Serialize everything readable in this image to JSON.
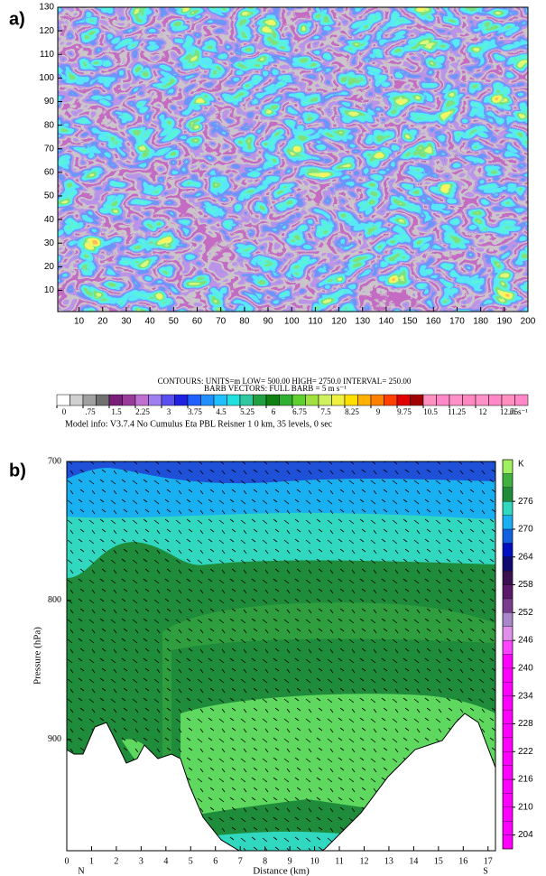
{
  "chart_data": [
    {
      "type": "heatmap",
      "panel_label": "a)",
      "xlim": [
        1,
        200
      ],
      "xticks": [
        10,
        20,
        30,
        40,
        50,
        60,
        70,
        80,
        90,
        100,
        110,
        120,
        130,
        140,
        150,
        160,
        170,
        180,
        190,
        200
      ],
      "ylim": [
        1,
        130
      ],
      "yticks": [
        10,
        20,
        30,
        40,
        50,
        60,
        70,
        80,
        90,
        100,
        110,
        120,
        130
      ],
      "contours_text": "CONTOURS:  UNITS=m  LOW=  500.00      HIGH=  2750.0      INTERVAL=   250.00",
      "barb_text": "BARB VECTORS:  FULL BARB = 5 m s⁻¹",
      "model_info": "Model info: V3.7.4 No Cumulus Eta PBL    Reisner 1      0 km,  35 levels,     0 sec",
      "colorbar": {
        "lim": [
          0,
          13.5
        ],
        "units": "m s⁻¹",
        "ticks": [
          0,
          {
            "value": 0.75,
            "label": ".75"
          },
          1.5,
          2.25,
          3,
          3.75,
          4.5,
          5.25,
          6,
          6.75,
          7.5,
          8.25,
          9,
          9.75,
          10.5,
          11.25,
          12,
          12.75
        ],
        "colors": [
          "#ffffff",
          "#d0d0d0",
          "#a0a0a0",
          "#707070",
          "#7a1e7a",
          "#9a3a9a",
          "#c070d0",
          "#a080f0",
          "#5a50f0",
          "#2020e0",
          "#2060ff",
          "#2090ff",
          "#20c0ff",
          "#20e0e0",
          "#30c8a0",
          "#20a040",
          "#108010",
          "#30b030",
          "#60d030",
          "#a0e040",
          "#d0f060",
          "#f0f040",
          "#ffe000",
          "#ffb000",
          "#ff8000",
          "#ff4000",
          "#e00000",
          "#a00000",
          "#ff90c0",
          "#ff88c8",
          "#ff90c8",
          "#ff88c0",
          "#ff90c8",
          "#ff88c8",
          "#ff90c0",
          "#ff88c8"
        ]
      }
    },
    {
      "type": "contourf",
      "panel_label": "b)",
      "xlabel": "Distance (km)",
      "ylabel": "Pressure (hPa)",
      "left_label": "N",
      "right_label": "S",
      "xlim": [
        0,
        17.3
      ],
      "xticks": [
        0,
        1,
        2,
        3,
        4,
        5,
        6,
        7,
        8,
        9,
        10,
        11,
        12,
        13,
        14,
        15,
        16,
        17
      ],
      "ylim": [
        980,
        700
      ],
      "yticks": [
        700,
        800,
        900
      ],
      "colorbar": {
        "title": "K",
        "lim": [
          201,
          285
        ],
        "ticks": [
          204,
          210,
          216,
          222,
          228,
          234,
          240,
          246,
          252,
          258,
          264,
          270,
          276
        ],
        "colors": [
          "#ff00ff",
          "#ff00ff",
          "#ff00ff",
          "#ff00ff",
          "#ff00ff",
          "#ff00ff",
          "#ff00ff",
          "#ff00ff",
          "#ff00ff",
          "#ff00ff",
          "#ff00ff",
          "#ff00ff",
          "#ff00ff",
          "#ff00ff",
          "#ff44ff",
          "#e090e8",
          "#a888c8",
          "#7a3c8c",
          "#5a1a6a",
          "#3a1050",
          "#100a70",
          "#0010c0",
          "#1060e0",
          "#18b0f0",
          "#30d8c0",
          "#1e8c3a",
          "#40b040",
          "#a0f060"
        ]
      }
    }
  ]
}
